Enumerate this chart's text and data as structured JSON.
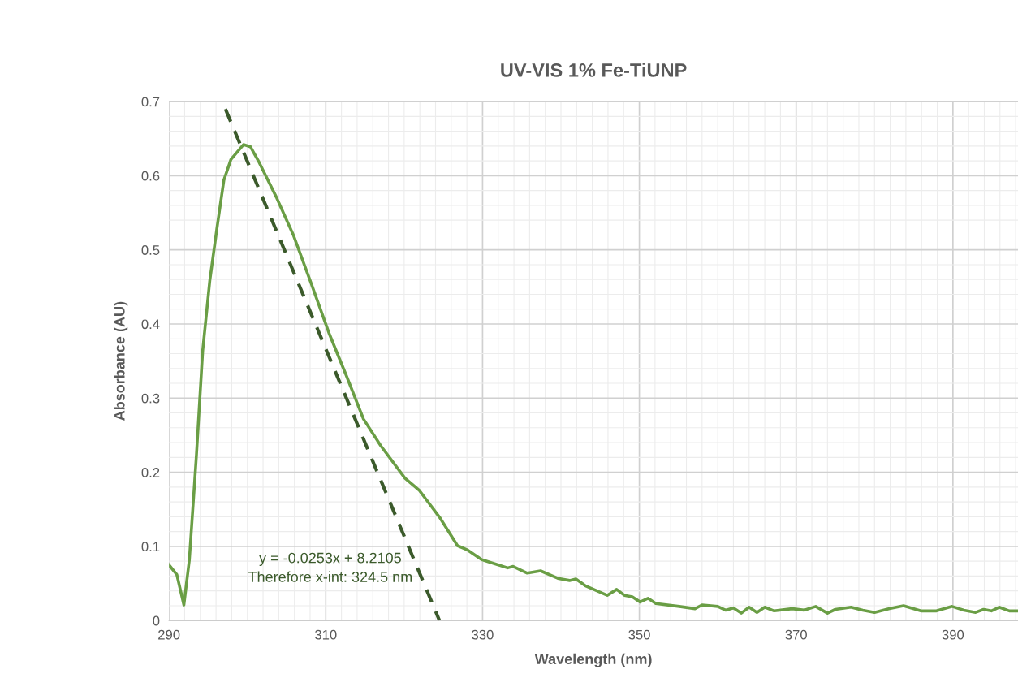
{
  "chart_data": {
    "type": "line",
    "title": "UV-VIS 1% Fe-TiUNP",
    "xlabel": "Wavelength (nm)",
    "ylabel": "Absorbance (AU)",
    "xlim": [
      290,
      398.3
    ],
    "xticks": [
      290,
      310,
      330,
      350,
      370,
      390
    ],
    "ylim": [
      0,
      0.7
    ],
    "yticks": [
      0,
      0.1,
      0.2,
      0.3,
      0.4,
      0.5,
      0.6,
      0.7
    ],
    "grid": true,
    "legend": false,
    "annotations": [
      "y = -0.0253x + 8.2105\nTherefore x-int: 324.5 nm"
    ],
    "series": [
      {
        "color": "#6a9e45",
        "line_style": "solid",
        "x": [
          290,
          291,
          291.9,
          292.6,
          293.5,
          294.3,
          295.2,
          296.1,
          297,
          297.9,
          299.5,
          300.4,
          301.5,
          303.7,
          305.9,
          308.2,
          310.4,
          312.6,
          314.8,
          317,
          320.1,
          321.9,
          324.6,
          326.8,
          328.1,
          329.9,
          331.7,
          333.2,
          333.9,
          335.7,
          337.4,
          339.6,
          341.1,
          341.9,
          343.1,
          345.9,
          347.1,
          348.1,
          349.1,
          350.1,
          351.1,
          352.1,
          355.1,
          357.1,
          358,
          360,
          361,
          362,
          363,
          364,
          365,
          366,
          367.2,
          369.5,
          371,
          372.5,
          374,
          375,
          377,
          378.5,
          380,
          381.9,
          383.7,
          385.9,
          387.9,
          389.9,
          391.4,
          392.9,
          393.9,
          394.9,
          395.9,
          397.2,
          398.3
        ],
        "values": [
          0.075,
          0.062,
          0.021,
          0.082,
          0.223,
          0.364,
          0.458,
          0.528,
          0.594,
          0.622,
          0.642,
          0.639,
          0.618,
          0.571,
          0.519,
          0.453,
          0.388,
          0.331,
          0.272,
          0.236,
          0.192,
          0.176,
          0.138,
          0.101,
          0.095,
          0.082,
          0.076,
          0.071,
          0.073,
          0.064,
          0.067,
          0.057,
          0.054,
          0.056,
          0.047,
          0.034,
          0.042,
          0.034,
          0.032,
          0.025,
          0.03,
          0.023,
          0.019,
          0.016,
          0.021,
          0.019,
          0.014,
          0.017,
          0.01,
          0.018,
          0.011,
          0.018,
          0.013,
          0.016,
          0.014,
          0.019,
          0.01,
          0.015,
          0.018,
          0.014,
          0.011,
          0.016,
          0.02,
          0.013,
          0.013,
          0.019,
          0.014,
          0.011,
          0.015,
          0.013,
          0.018,
          0.013,
          0.013
        ]
      },
      {
        "type": "line",
        "color": "#3b5a2b",
        "line_style": "dashed",
        "x": [
          297.2,
          324.5
        ],
        "values": [
          0.69,
          0
        ]
      }
    ]
  }
}
